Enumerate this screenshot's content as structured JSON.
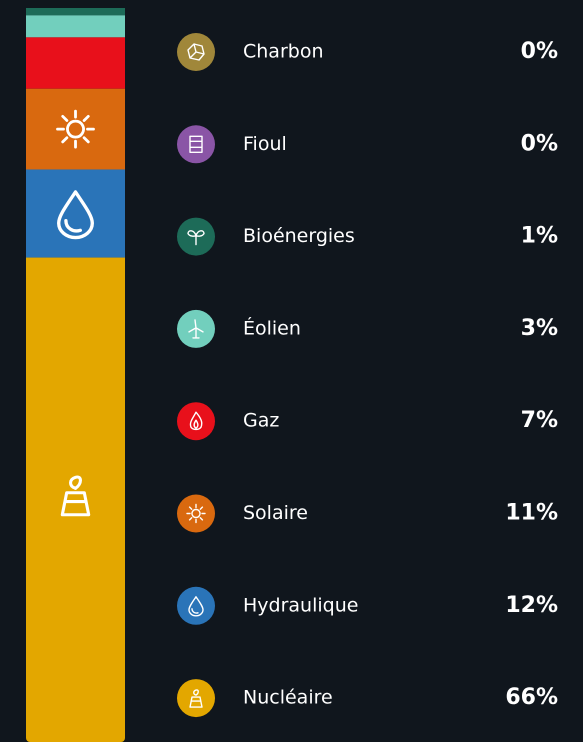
{
  "chart_data": {
    "type": "stacked-bar",
    "categories": [
      "Charbon",
      "Fioul",
      "Bioénergies",
      "Éolien",
      "Gaz",
      "Solaire",
      "Hydraulique",
      "Nucléaire"
    ],
    "values": [
      0,
      0,
      1,
      3,
      7,
      11,
      12,
      66
    ],
    "value_labels": [
      "0%",
      "0%",
      "1%",
      "3%",
      "7%",
      "11%",
      "12%",
      "66%"
    ],
    "colors": [
      "#a0873a",
      "#8a55a6",
      "#1d6b58",
      "#72cfbd",
      "#e8101b",
      "#d9690f",
      "#2a74b8",
      "#e3a700"
    ],
    "ylim": [
      0,
      100
    ]
  }
}
